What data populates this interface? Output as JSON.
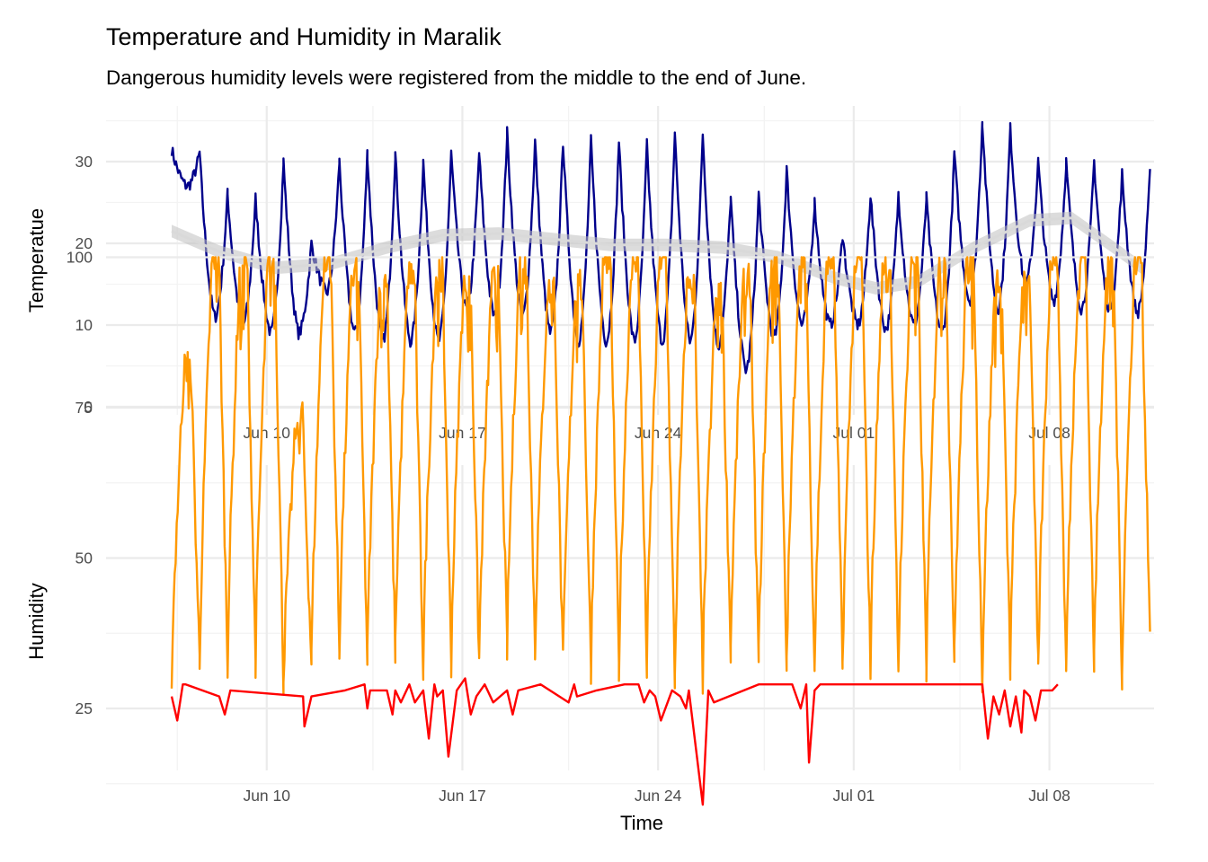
{
  "title": "Temperature and Humidity in Maralik",
  "subtitle": "Dangerous humidity levels were registered from the middle to the end of June.",
  "colors": {
    "temperature": "#00008B",
    "trend": "#d9d9d9",
    "humidity": "#FF9900",
    "dew_low": "#FF0000",
    "grid_major": "#ebebeb",
    "grid_minor": "#f3f3f3",
    "tick_text": "#4d4d4d"
  },
  "chart_data": [
    {
      "type": "line",
      "panel": "top",
      "xlabel": "",
      "ylabel": "Temperatue",
      "x_ticks": [
        "Jun 10",
        "Jun 17",
        "Jun 24",
        "Jul 01",
        "Jul 08"
      ],
      "x_tick_days": [
        10,
        17,
        24,
        31,
        38
      ],
      "xlim_days": [
        6.5,
        41
      ],
      "y_ticks": [
        0,
        10,
        20,
        30
      ],
      "ylim": [
        0,
        35
      ],
      "grid": true,
      "series": [
        {
          "role": "temperature",
          "peak_days": [
            6.3,
            7.3,
            8.3,
            9.3,
            10.3,
            11.3,
            12.3,
            13.3,
            14.3,
            15.3,
            16.3,
            17.3,
            18.3,
            19.3,
            20.3,
            21.3,
            22.3,
            23.3,
            24.3,
            25.3,
            26.3,
            27.3,
            28.3,
            29.3,
            30.3,
            31.3,
            32.3,
            33.3,
            34.3,
            35.3,
            36.3,
            37.3,
            38.3,
            39.3,
            40.3
          ],
          "daily_max": [
            31.5,
            31,
            26,
            25.5,
            30,
            20,
            30,
            31,
            31,
            30,
            31,
            31,
            33.5,
            32.5,
            32.5,
            32.5,
            32.5,
            32,
            33.5,
            33.5,
            25.5,
            26,
            29,
            25,
            21,
            26,
            26,
            25.5,
            31,
            35,
            34,
            30,
            30,
            30,
            28.5
          ],
          "daily_min": [
            27,
            11,
            10,
            9,
            9,
            14,
            9,
            8,
            8,
            8,
            12,
            11,
            11,
            9,
            8,
            8,
            8,
            8,
            8,
            7.5,
            4.5,
            8.5,
            10,
            10,
            10,
            9.5,
            10,
            9,
            13,
            12,
            15,
            13,
            12,
            12,
            11.5
          ],
          "end_value": 28.5
        },
        {
          "role": "smoothed trend",
          "x_days": [
            6.3,
            8,
            10,
            12,
            14,
            16,
            18,
            20,
            22,
            24,
            26,
            28,
            30,
            31.5,
            33,
            35,
            37,
            38.5,
            40,
            41
          ],
          "values": [
            21.5,
            19,
            17,
            17.5,
            19.5,
            21,
            21.2,
            20.5,
            19.8,
            19.8,
            19.5,
            18.3,
            15.8,
            14.5,
            15.3,
            19.5,
            22.8,
            23.1,
            19.5,
            17
          ]
        }
      ]
    },
    {
      "type": "line",
      "panel": "bottom",
      "xlabel": "Time",
      "ylabel": "Humidity",
      "x_ticks": [
        "Jun 10",
        "Jun 17",
        "Jun 24",
        "Jul 01",
        "Jul 08"
      ],
      "x_tick_days": [
        10,
        17,
        24,
        31,
        38
      ],
      "xlim_days": [
        6.5,
        41
      ],
      "y_ticks": [
        25,
        50,
        75,
        100
      ],
      "ylim": [
        8,
        100
      ],
      "grid": true,
      "series": [
        {
          "role": "humidity",
          "trough_days": [
            6.3,
            7.3,
            8.3,
            9.3,
            10.3,
            11.3,
            12.3,
            13.3,
            14.3,
            15.3,
            16.3,
            17.3,
            18.3,
            19.3,
            20.3,
            21.3,
            22.3,
            23.3,
            24.3,
            25.3,
            26.3,
            27.3,
            28.3,
            29.3,
            30.3,
            31.3,
            32.3,
            33.3,
            34.3,
            35.3,
            36.3,
            37.3,
            38.3,
            39.3,
            40.3
          ],
          "daily_max": [
            82,
            100,
            100,
            100,
            73,
            100,
            97,
            97,
            97,
            97,
            97,
            96,
            100,
            95,
            95,
            100,
            100,
            100,
            97,
            93,
            96,
            100,
            100,
            100,
            100,
            100,
            100,
            100,
            100,
            95,
            98,
            100,
            100,
            100,
            100
          ],
          "daily_min": [
            31,
            33,
            33,
            33,
            30,
            33,
            35,
            33,
            35,
            32,
            33,
            33,
            35,
            35,
            32,
            32,
            32,
            32,
            30,
            30,
            35,
            33,
            32,
            32,
            32,
            32,
            32,
            32,
            33,
            30,
            32,
            31,
            31,
            33,
            31
          ],
          "end_value": 39
        },
        {
          "role": "dangerous low humidity",
          "x_days": [
            6.3,
            6.5,
            6.7,
            6.8,
            8,
            8.2,
            8.4,
            11,
            11.05,
            11.3,
            12.5,
            13.2,
            13.3,
            13.4,
            14,
            14.2,
            14.3,
            14.5,
            14.8,
            15,
            15.3,
            15.5,
            15.7,
            15.8,
            16,
            16.2,
            16.5,
            16.8,
            17,
            17.2,
            17.5,
            17.8,
            18.3,
            18.5,
            18.7,
            19.5,
            20.5,
            20.7,
            20.8,
            21.5,
            22.5,
            23,
            23.2,
            23.4,
            23.6,
            23.8,
            24.2,
            24.5,
            24.7,
            24.8,
            25.3,
            25.5,
            25.7,
            27.3,
            28.5,
            28.8,
            29,
            29.1,
            29.3,
            29.5,
            35.3,
            35.5,
            35.7,
            35.9,
            36.1,
            36.3,
            36.5,
            36.7,
            36.8,
            37,
            37.2,
            37.4,
            37.8,
            38
          ],
          "values": [
            27,
            23,
            29,
            29,
            27,
            24,
            28,
            27,
            22,
            27,
            28,
            29,
            25,
            28,
            28,
            24,
            28,
            26,
            29,
            26,
            28,
            20,
            29,
            27,
            28,
            17,
            28,
            30,
            24,
            27,
            29,
            26,
            28,
            24,
            28,
            29,
            26,
            29,
            27,
            28,
            29,
            29,
            26,
            28,
            27,
            23,
            28,
            27,
            25,
            28,
            9,
            28,
            26,
            29,
            29,
            25,
            29,
            16,
            28,
            29,
            29,
            20,
            27,
            24,
            28,
            22,
            27,
            21,
            28,
            27,
            23,
            28,
            28,
            29
          ]
        }
      ]
    }
  ]
}
